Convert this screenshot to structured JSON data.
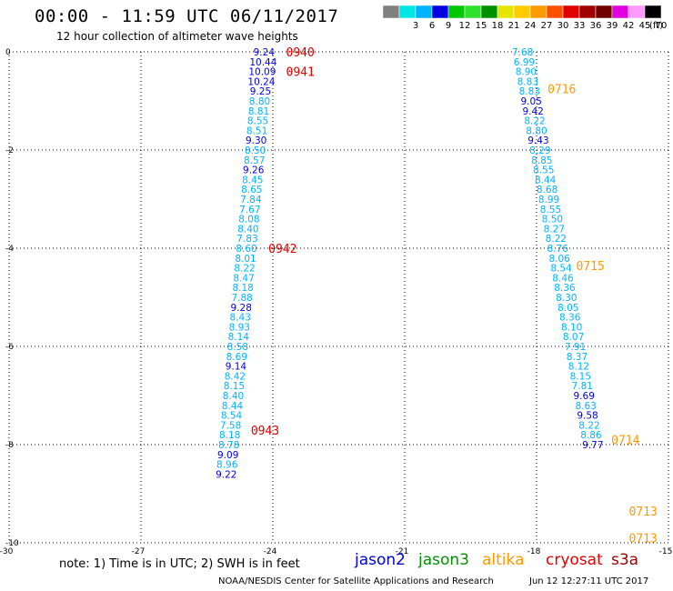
{
  "header": {
    "title": "00:00 - 11:59 UTC 06/11/2017",
    "subtitle": "12 hour collection of altimeter wave heights"
  },
  "legend": {
    "unit": "(ft)",
    "swatches": [
      {
        "color": "#808080",
        "label": ""
      },
      {
        "color": "#00e5e5",
        "label": "3"
      },
      {
        "color": "#00b3ff",
        "label": "6"
      },
      {
        "color": "#0000e0",
        "label": "9"
      },
      {
        "color": "#00c800",
        "label": "12"
      },
      {
        "color": "#2fe02f",
        "label": "15"
      },
      {
        "color": "#009000",
        "label": "18"
      },
      {
        "color": "#e6e600",
        "label": "21"
      },
      {
        "color": "#ffcc00",
        "label": "24"
      },
      {
        "color": "#ff9900",
        "label": "27"
      },
      {
        "color": "#ff5000",
        "label": "30"
      },
      {
        "color": "#e00000",
        "label": "33"
      },
      {
        "color": "#a00000",
        "label": "36"
      },
      {
        "color": "#700000",
        "label": "39"
      },
      {
        "color": "#e000e0",
        "label": "42"
      },
      {
        "color": "#ff99ff",
        "label": "45"
      },
      {
        "color": "#000000",
        "label": "70"
      }
    ]
  },
  "chart_data": {
    "type": "scatter",
    "xlim": [
      -30,
      -15
    ],
    "ylim": [
      -10,
      0
    ],
    "xticks": [
      "-30",
      "-27",
      "-24",
      "-21",
      "-18",
      "-15"
    ],
    "yticks": [
      "0",
      "-2",
      "-4",
      "-6",
      "-8",
      "-10"
    ],
    "xtick_values": [
      -30,
      -27,
      -24,
      -21,
      -18,
      -15
    ],
    "ytick_values": [
      0,
      -2,
      -4,
      -6,
      -8,
      -10
    ],
    "grid": true,
    "series": [
      {
        "name": "track1",
        "points": [
          {
            "lon": -24.2,
            "lat": 0.0,
            "v": "9.24",
            "c": "#0000e0"
          },
          {
            "lon": -24.22,
            "lat": -0.2,
            "v": "10.44",
            "c": "#0000e0"
          },
          {
            "lon": -24.24,
            "lat": -0.4,
            "v": "10.09",
            "c": "#0000e0"
          },
          {
            "lon": -24.26,
            "lat": -0.6,
            "v": "10.24",
            "c": "#0000e0"
          },
          {
            "lon": -24.28,
            "lat": -0.8,
            "v": "9.25",
            "c": "#0000e0"
          },
          {
            "lon": -24.3,
            "lat": -1.0,
            "v": "8.80",
            "c": "#00b3ff"
          },
          {
            "lon": -24.32,
            "lat": -1.2,
            "v": "8.81",
            "c": "#00b3ff"
          },
          {
            "lon": -24.34,
            "lat": -1.4,
            "v": "8.55",
            "c": "#00b3ff"
          },
          {
            "lon": -24.36,
            "lat": -1.6,
            "v": "8.51",
            "c": "#00b3ff"
          },
          {
            "lon": -24.38,
            "lat": -1.8,
            "v": "9.30",
            "c": "#0000e0"
          },
          {
            "lon": -24.4,
            "lat": -2.0,
            "v": "8.50",
            "c": "#00b3ff"
          },
          {
            "lon": -24.42,
            "lat": -2.2,
            "v": "8.57",
            "c": "#00b3ff"
          },
          {
            "lon": -24.44,
            "lat": -2.4,
            "v": "9.26",
            "c": "#0000e0"
          },
          {
            "lon": -24.46,
            "lat": -2.6,
            "v": "8.45",
            "c": "#00b3ff"
          },
          {
            "lon": -24.48,
            "lat": -2.8,
            "v": "8.65",
            "c": "#00b3ff"
          },
          {
            "lon": -24.5,
            "lat": -3.0,
            "v": "7.84",
            "c": "#00b3ff"
          },
          {
            "lon": -24.52,
            "lat": -3.2,
            "v": "7.67",
            "c": "#00b3ff"
          },
          {
            "lon": -24.54,
            "lat": -3.4,
            "v": "8.08",
            "c": "#00b3ff"
          },
          {
            "lon": -24.56,
            "lat": -3.6,
            "v": "8.40",
            "c": "#00b3ff"
          },
          {
            "lon": -24.58,
            "lat": -3.8,
            "v": "7.83",
            "c": "#00b3ff"
          },
          {
            "lon": -24.6,
            "lat": -4.0,
            "v": "8.60",
            "c": "#00b3ff"
          },
          {
            "lon": -24.62,
            "lat": -4.2,
            "v": "8.01",
            "c": "#00b3ff"
          },
          {
            "lon": -24.64,
            "lat": -4.4,
            "v": "8.22",
            "c": "#00b3ff"
          },
          {
            "lon": -24.66,
            "lat": -4.6,
            "v": "8.47",
            "c": "#00b3ff"
          },
          {
            "lon": -24.68,
            "lat": -4.8,
            "v": "8.18",
            "c": "#00b3ff"
          },
          {
            "lon": -24.7,
            "lat": -5.0,
            "v": "7.88",
            "c": "#00b3ff"
          },
          {
            "lon": -24.72,
            "lat": -5.2,
            "v": "9.28",
            "c": "#0000e0"
          },
          {
            "lon": -24.74,
            "lat": -5.4,
            "v": "8.43",
            "c": "#00b3ff"
          },
          {
            "lon": -24.76,
            "lat": -5.6,
            "v": "8.93",
            "c": "#00b3ff"
          },
          {
            "lon": -24.78,
            "lat": -5.8,
            "v": "8.14",
            "c": "#00b3ff"
          },
          {
            "lon": -24.8,
            "lat": -6.0,
            "v": "8.58",
            "c": "#00b3ff"
          },
          {
            "lon": -24.82,
            "lat": -6.2,
            "v": "8.69",
            "c": "#00b3ff"
          },
          {
            "lon": -24.84,
            "lat": -6.4,
            "v": "9.14",
            "c": "#0000e0"
          },
          {
            "lon": -24.86,
            "lat": -6.6,
            "v": "8.42",
            "c": "#00b3ff"
          },
          {
            "lon": -24.88,
            "lat": -6.8,
            "v": "8.15",
            "c": "#00b3ff"
          },
          {
            "lon": -24.9,
            "lat": -7.0,
            "v": "8.40",
            "c": "#00b3ff"
          },
          {
            "lon": -24.92,
            "lat": -7.2,
            "v": "8.44",
            "c": "#00b3ff"
          },
          {
            "lon": -24.94,
            "lat": -7.4,
            "v": "8.54",
            "c": "#00b3ff"
          },
          {
            "lon": -24.96,
            "lat": -7.6,
            "v": "7.58",
            "c": "#00b3ff"
          },
          {
            "lon": -24.98,
            "lat": -7.8,
            "v": "8.18",
            "c": "#00b3ff"
          },
          {
            "lon": -25.0,
            "lat": -8.0,
            "v": "8.78",
            "c": "#00b3ff"
          },
          {
            "lon": -25.02,
            "lat": -8.2,
            "v": "9.09",
            "c": "#0000e0"
          },
          {
            "lon": -25.04,
            "lat": -8.4,
            "v": "8.96",
            "c": "#00b3ff"
          },
          {
            "lon": -25.06,
            "lat": -8.6,
            "v": "9.22",
            "c": "#0000e0"
          }
        ]
      },
      {
        "name": "track2",
        "points": [
          {
            "lon": -18.32,
            "lat": 0.0,
            "v": "7.68",
            "c": "#00b3ff"
          },
          {
            "lon": -18.28,
            "lat": -0.2,
            "v": "6.99",
            "c": "#00b3ff"
          },
          {
            "lon": -18.24,
            "lat": -0.4,
            "v": "8.90",
            "c": "#00b3ff"
          },
          {
            "lon": -18.2,
            "lat": -0.6,
            "v": "8.83",
            "c": "#00b3ff"
          },
          {
            "lon": -18.16,
            "lat": -0.8,
            "v": "8.83",
            "c": "#00b3ff"
          },
          {
            "lon": -18.12,
            "lat": -1.0,
            "v": "9.05",
            "c": "#0000e0"
          },
          {
            "lon": -18.08,
            "lat": -1.2,
            "v": "9.42",
            "c": "#0000e0"
          },
          {
            "lon": -18.04,
            "lat": -1.4,
            "v": "8.22",
            "c": "#00b3ff"
          },
          {
            "lon": -18.0,
            "lat": -1.6,
            "v": "8.80",
            "c": "#00b3ff"
          },
          {
            "lon": -17.96,
            "lat": -1.8,
            "v": "9.43",
            "c": "#0000e0"
          },
          {
            "lon": -17.92,
            "lat": -2.0,
            "v": "8.29",
            "c": "#00b3ff"
          },
          {
            "lon": -17.88,
            "lat": -2.2,
            "v": "8.85",
            "c": "#00b3ff"
          },
          {
            "lon": -17.84,
            "lat": -2.4,
            "v": "8.55",
            "c": "#00b3ff"
          },
          {
            "lon": -17.8,
            "lat": -2.6,
            "v": "8.44",
            "c": "#00b3ff"
          },
          {
            "lon": -17.76,
            "lat": -2.8,
            "v": "8.68",
            "c": "#00b3ff"
          },
          {
            "lon": -17.72,
            "lat": -3.0,
            "v": "8.99",
            "c": "#00b3ff"
          },
          {
            "lon": -17.68,
            "lat": -3.2,
            "v": "8.55",
            "c": "#00b3ff"
          },
          {
            "lon": -17.64,
            "lat": -3.4,
            "v": "8.50",
            "c": "#00b3ff"
          },
          {
            "lon": -17.6,
            "lat": -3.6,
            "v": "8.27",
            "c": "#00b3ff"
          },
          {
            "lon": -17.56,
            "lat": -3.8,
            "v": "8.22",
            "c": "#00b3ff"
          },
          {
            "lon": -17.52,
            "lat": -4.0,
            "v": "8.76",
            "c": "#00b3ff"
          },
          {
            "lon": -17.48,
            "lat": -4.2,
            "v": "8.06",
            "c": "#00b3ff"
          },
          {
            "lon": -17.44,
            "lat": -4.4,
            "v": "8.54",
            "c": "#00b3ff"
          },
          {
            "lon": -17.4,
            "lat": -4.6,
            "v": "8.46",
            "c": "#00b3ff"
          },
          {
            "lon": -17.36,
            "lat": -4.8,
            "v": "8.36",
            "c": "#00b3ff"
          },
          {
            "lon": -17.32,
            "lat": -5.0,
            "v": "8.30",
            "c": "#00b3ff"
          },
          {
            "lon": -17.28,
            "lat": -5.2,
            "v": "8.05",
            "c": "#00b3ff"
          },
          {
            "lon": -17.24,
            "lat": -5.4,
            "v": "8.36",
            "c": "#00b3ff"
          },
          {
            "lon": -17.2,
            "lat": -5.6,
            "v": "8.10",
            "c": "#00b3ff"
          },
          {
            "lon": -17.16,
            "lat": -5.8,
            "v": "8.07",
            "c": "#00b3ff"
          },
          {
            "lon": -17.12,
            "lat": -6.0,
            "v": "7.91",
            "c": "#00b3ff"
          },
          {
            "lon": -17.08,
            "lat": -6.2,
            "v": "8.37",
            "c": "#00b3ff"
          },
          {
            "lon": -17.04,
            "lat": -6.4,
            "v": "8.12",
            "c": "#00b3ff"
          },
          {
            "lon": -17.0,
            "lat": -6.6,
            "v": "8.15",
            "c": "#00b3ff"
          },
          {
            "lon": -16.96,
            "lat": -6.8,
            "v": "7.81",
            "c": "#00b3ff"
          },
          {
            "lon": -16.92,
            "lat": -7.0,
            "v": "9.69",
            "c": "#0000e0"
          },
          {
            "lon": -16.88,
            "lat": -7.2,
            "v": "8.63",
            "c": "#00b3ff"
          },
          {
            "lon": -16.84,
            "lat": -7.4,
            "v": "9.58",
            "c": "#0000e0"
          },
          {
            "lon": -16.8,
            "lat": -7.6,
            "v": "8.22",
            "c": "#00b3ff"
          },
          {
            "lon": -16.76,
            "lat": -7.8,
            "v": "8.86",
            "c": "#00b3ff"
          },
          {
            "lon": -16.72,
            "lat": -8.0,
            "v": "9.77",
            "c": "#0000e0"
          }
        ]
      }
    ],
    "annotations": [
      {
        "text": "0940",
        "lon": -23.7,
        "lat": 0.0,
        "color": "#e00000"
      },
      {
        "text": "0941",
        "lon": -23.7,
        "lat": -0.4,
        "color": "#e00000"
      },
      {
        "text": "0942",
        "lon": -24.1,
        "lat": -4.0,
        "color": "#e00000"
      },
      {
        "text": "0943",
        "lon": -24.5,
        "lat": -7.7,
        "color": "#e00000"
      },
      {
        "text": "0716",
        "lon": -17.75,
        "lat": -0.75,
        "color": "#ff9900"
      },
      {
        "text": "0715",
        "lon": -17.1,
        "lat": -4.35,
        "color": "#ff9900"
      },
      {
        "text": "0714",
        "lon": -16.3,
        "lat": -7.9,
        "color": "#ff9900"
      },
      {
        "text": "0713",
        "lon": -15.9,
        "lat": -9.35,
        "color": "#ff9900"
      },
      {
        "text": "0713",
        "lon": -15.9,
        "lat": -9.9,
        "color": "#ff9900"
      }
    ]
  },
  "footer": {
    "note": "note: 1) Time is in UTC; 2) SWH is in feet",
    "satellites": [
      {
        "name": "jason2",
        "color": "#0000e0"
      },
      {
        "name": "jason3",
        "color": "#009000"
      },
      {
        "name": "altika",
        "color": "#ff9900"
      },
      {
        "name": "cryosat",
        "color": "#e00000"
      },
      {
        "name": "s3a",
        "color": "#a00000"
      }
    ],
    "credit": "NOAA/NESDIS Center for Satellite Applications and Research",
    "timestamp": "Jun 12 12:27:11 UTC 2017"
  }
}
